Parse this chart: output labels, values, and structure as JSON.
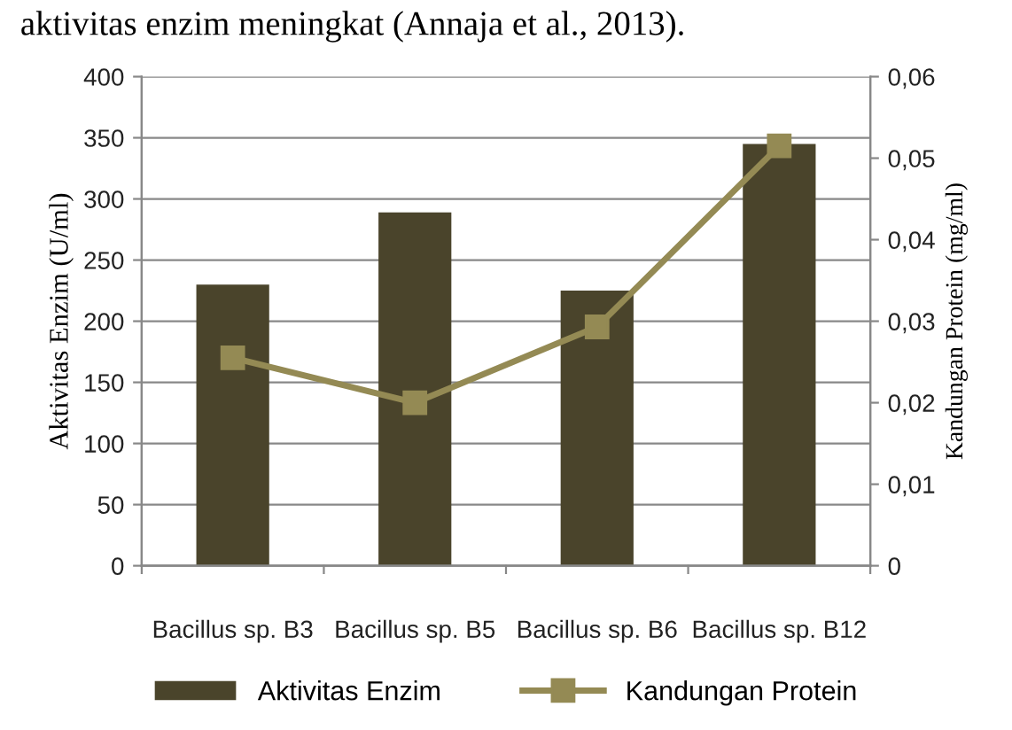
{
  "chart_data": {
    "type": "bar",
    "annotations": [
      "aktivitas enzim meningkat (Annaja et al., 2013)."
    ],
    "categories": [
      "Bacillus sp. B3",
      "Bacillus sp. B5",
      "Bacillus sp. B6",
      "Bacillus sp. B12"
    ],
    "ylabel": "Aktivitas Enzim (U/ml)",
    "y2label": "Kandungan Protein (mg/ml)",
    "series": [
      {
        "name": "Aktivitas Enzim",
        "color": "#4a442b",
        "values": [
          230,
          289,
          225,
          345
        ]
      },
      {
        "name": "Kandungan Protein",
        "type": "line",
        "axis": "y2",
        "color": "#948a54",
        "marker": "square",
        "values": [
          0.0255,
          0.02,
          0.0293,
          0.0515
        ]
      }
    ],
    "ylim": [
      0,
      400
    ],
    "yticks": [
      0,
      50,
      100,
      150,
      200,
      250,
      300,
      350,
      400
    ],
    "y2lim": [
      0,
      0.06
    ],
    "y2ticks": [
      {
        "value": 0,
        "label": "0"
      },
      {
        "value": 0.01,
        "label": "0,01"
      },
      {
        "value": 0.02,
        "label": "0,02"
      },
      {
        "value": 0.03,
        "label": "0,03"
      },
      {
        "value": 0.04,
        "label": "0,04"
      },
      {
        "value": 0.05,
        "label": "0,05"
      },
      {
        "value": 0.06,
        "label": "0,06"
      }
    ],
    "grid": "y",
    "legend": "bottom"
  }
}
